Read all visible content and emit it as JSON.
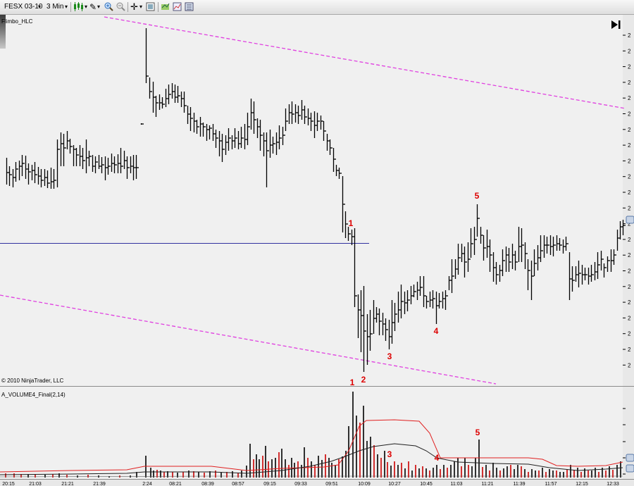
{
  "toolbar": {
    "instrument": "FESX 03-10",
    "interval": "3 Min",
    "icons": [
      "dropdown-arrow-icon",
      "candlestick-icon",
      "pencil-icon",
      "zoom-in-icon",
      "zoom-out-icon",
      "crosshair-icon",
      "properties-icon",
      "strategy-icon",
      "indicator-icon",
      "data-box-icon"
    ]
  },
  "price_panel": {
    "indicator_label": "Flimbo_HLC",
    "copyright": "© 2010 NinjaTrader, LLC",
    "annotations": [
      "1",
      "2",
      "3",
      "4",
      "5"
    ]
  },
  "volume_panel": {
    "indicator_label": "A_VOLUME4_Final(2,14)",
    "annotations": [
      "1",
      "3",
      "4",
      "5"
    ]
  },
  "x_axis": {
    "tick_labels": [
      "20:15",
      "21:03",
      "21:21",
      "21:39",
      "2:24",
      "08:21",
      "08:39",
      "08:57",
      "09:15",
      "09:33",
      "09:51",
      "10:09",
      "10:27",
      "10:45",
      "11:03",
      "11:21",
      "11:39",
      "11:57",
      "12:15",
      "12:33"
    ]
  },
  "colors": {
    "background": "#f0f0f0",
    "bars": "#000000",
    "channel": "#e040e0",
    "level_line": "#3030a0",
    "annotation": "#dd0000",
    "volume_up": "#000000",
    "volume_down": "#cc0000",
    "volume_avg_fast": "#e02020",
    "volume_avg_slow": "#202020"
  }
}
